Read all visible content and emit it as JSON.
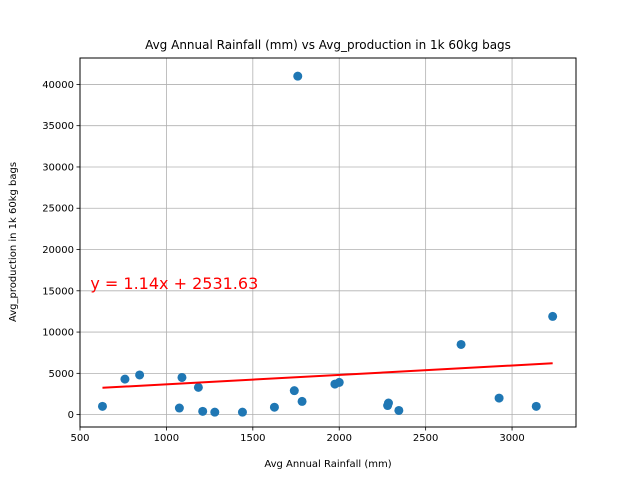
{
  "chart_data": {
    "type": "scatter",
    "title": "Avg Annual Rainfall (mm) vs Avg_production in 1k 60kg bags",
    "xlabel": "Avg Annual Rainfall (mm)",
    "ylabel": "Avg_production in 1k 60kg bags",
    "xlim": [
      500,
      3370
    ],
    "ylim": [
      -1500,
      43200
    ],
    "xticks": [
      500,
      1000,
      1500,
      2000,
      2500,
      3000
    ],
    "yticks": [
      0,
      5000,
      10000,
      15000,
      20000,
      25000,
      30000,
      35000,
      40000
    ],
    "grid": true,
    "point_color": "#1f77b4",
    "points": [
      {
        "x": 630,
        "y": 1000
      },
      {
        "x": 760,
        "y": 4300
      },
      {
        "x": 845,
        "y": 4800
      },
      {
        "x": 1075,
        "y": 800
      },
      {
        "x": 1090,
        "y": 4500
      },
      {
        "x": 1185,
        "y": 3300
      },
      {
        "x": 1210,
        "y": 400
      },
      {
        "x": 1280,
        "y": 300
      },
      {
        "x": 1440,
        "y": 300
      },
      {
        "x": 1625,
        "y": 900
      },
      {
        "x": 1740,
        "y": 2900
      },
      {
        "x": 1760,
        "y": 41000
      },
      {
        "x": 1785,
        "y": 1600
      },
      {
        "x": 1975,
        "y": 3700
      },
      {
        "x": 2000,
        "y": 3900
      },
      {
        "x": 2280,
        "y": 1100
      },
      {
        "x": 2285,
        "y": 1400
      },
      {
        "x": 2345,
        "y": 500
      },
      {
        "x": 2705,
        "y": 8500
      },
      {
        "x": 2925,
        "y": 2000
      },
      {
        "x": 3140,
        "y": 1000
      },
      {
        "x": 3235,
        "y": 11900
      }
    ],
    "regression": {
      "slope": 1.14,
      "intercept": 2531.63,
      "label": "y = 1.14x + 2531.63",
      "color": "#ff0000",
      "label_x": 560,
      "label_y": 15000
    }
  }
}
